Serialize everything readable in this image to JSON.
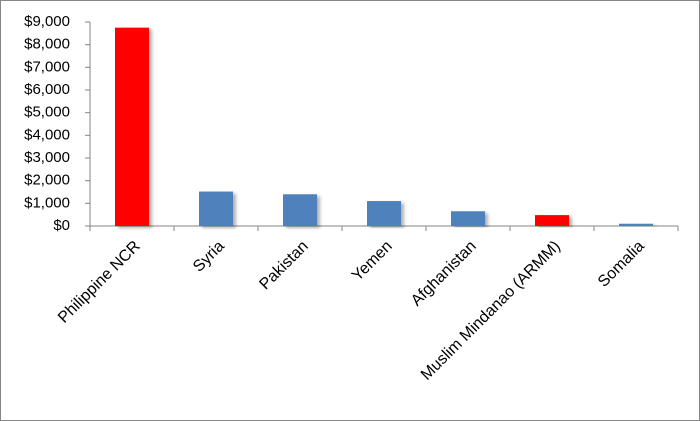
{
  "chart_data": {
    "type": "bar",
    "categories": [
      "Philippine NCR",
      "Syria",
      "Pakistan",
      "Yemen",
      "Afghanistan",
      "Muslim Mindanao (ARMM)",
      "Somalia"
    ],
    "values": [
      8750,
      1520,
      1400,
      1100,
      650,
      480,
      100
    ],
    "colors": [
      "#ff0000",
      "#4f81bd",
      "#4f81bd",
      "#4f81bd",
      "#4f81bd",
      "#ff0000",
      "#4f81bd"
    ],
    "ylim": [
      0,
      9000
    ],
    "yticks": [
      {
        "value": 0,
        "label": "$0"
      },
      {
        "value": 1000,
        "label": "$1,000"
      },
      {
        "value": 2000,
        "label": "$2,000"
      },
      {
        "value": 3000,
        "label": "$3,000"
      },
      {
        "value": 4000,
        "label": "$4,000"
      },
      {
        "value": 5000,
        "label": "$5,000"
      },
      {
        "value": 6000,
        "label": "$6,000"
      },
      {
        "value": 7000,
        "label": "$7,000"
      },
      {
        "value": 8000,
        "label": "$8,000"
      },
      {
        "value": 9000,
        "label": "$9,000"
      }
    ],
    "grid": false
  }
}
